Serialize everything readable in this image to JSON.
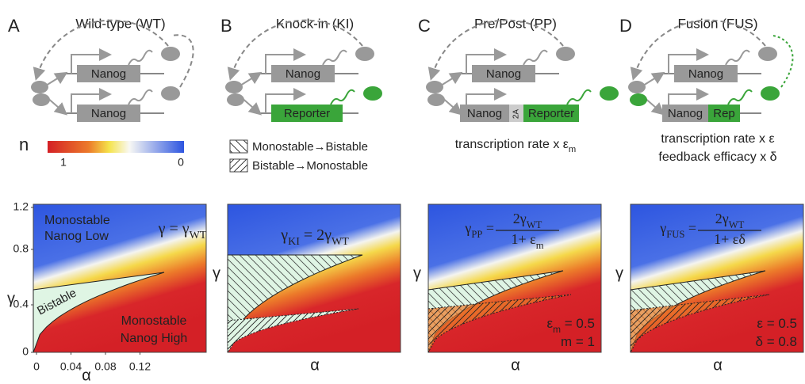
{
  "panels": [
    {
      "letter": "A",
      "title": "Wild-type (WT)",
      "gene_top": "Nanog",
      "gene_bottom": [
        "Nanog"
      ],
      "equation": {
        "lhs": "γ",
        "rhs": " = γ",
        "rhs_sub": "WT"
      },
      "regions": {
        "low": [
          "Monostable",
          "Nanog Low"
        ],
        "bistable": "Bistable",
        "high": [
          "Monostable",
          "Nanog High"
        ]
      },
      "y_label": "γ",
      "x_label": "α",
      "yticks": [
        "0",
        "0.4",
        "0.8",
        "1.2"
      ],
      "xticks": [
        "0",
        "0.04",
        "0.08",
        "0.12"
      ]
    },
    {
      "letter": "B",
      "title": "Knock-in (KI)",
      "gene_top": "Nanog",
      "gene_bottom": [
        "Reporter"
      ],
      "equation": {
        "lhs": "γ",
        "lhs_sub": "KI",
        "rhs": " = 2γ",
        "rhs_sub": "WT"
      },
      "y_label": "γ",
      "x_label": "α"
    },
    {
      "letter": "C",
      "title": "Pre/Post (PP)",
      "gene_top": "Nanog",
      "gene_bottom": [
        "Nanog",
        "2A",
        "Reporter"
      ],
      "notes": [
        {
          "text": "transcription rate x ε",
          "sub": "m"
        }
      ],
      "equation": {
        "lhs": "γ",
        "lhs_sub": "PP",
        "eq": " = ",
        "num": "2γ",
        "num_sub": "WT",
        "den": "1+ ε",
        "den_sub": "m"
      },
      "params": [
        {
          "text": "ε",
          "sub": "m",
          "rest": " = 0.5"
        },
        {
          "text": "m = 1"
        }
      ],
      "y_label": "γ",
      "x_label": "α"
    },
    {
      "letter": "D",
      "title": "Fusion (FUS)",
      "gene_top": "Nanog",
      "gene_bottom": [
        "Nanog",
        "Rep"
      ],
      "notes": [
        {
          "text": "transcription rate x ε"
        },
        {
          "text": "feedback efficacy x δ"
        }
      ],
      "equation": {
        "lhs": "γ",
        "lhs_sub": "FUS",
        "eq": " = ",
        "num": "2γ",
        "num_sub": "WT",
        "den": "1+ εδ"
      },
      "params": [
        {
          "text": "ε = 0.5"
        },
        {
          "text": "δ = 0.8"
        }
      ],
      "y_label": "γ",
      "x_label": "α"
    }
  ],
  "colorbar": {
    "label": "n",
    "left_label": "1",
    "right_label": "0"
  },
  "legend": [
    "Monostable→Bistable",
    "Bistable→Monostable"
  ]
}
